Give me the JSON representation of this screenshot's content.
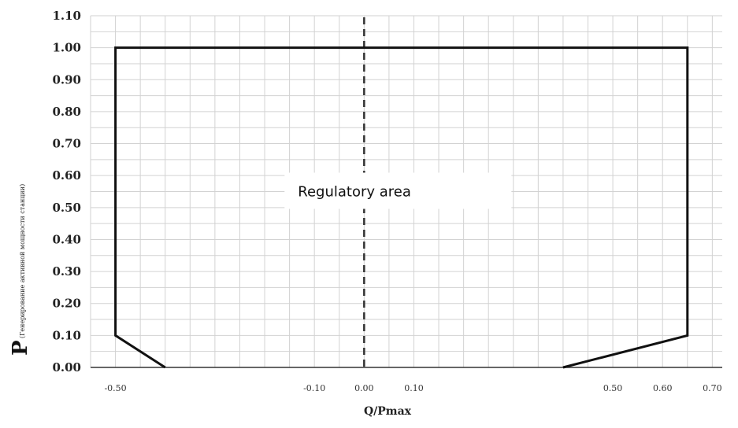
{
  "chart_data": {
    "type": "line",
    "xlabel": "Q/Pmax",
    "ylabel": "P",
    "ylabel_sub": "(Генерирование активной мощности станции)",
    "xlim": [
      -0.55,
      0.72
    ],
    "ylim": [
      0,
      1.1
    ],
    "y_ticks": [
      "0.00",
      "0.10",
      "0.20",
      "0.30",
      "0.40",
      "0.50",
      "0.60",
      "0.70",
      "0.80",
      "0.90",
      "1.00",
      "1.10"
    ],
    "x_ticks": [
      {
        "value": -0.5,
        "label": "-0.50"
      },
      {
        "value": -0.1,
        "label": "-0.10"
      },
      {
        "value": 0.0,
        "label": "0.00"
      },
      {
        "value": 0.1,
        "label": "0.10"
      },
      {
        "value": 0.5,
        "label": "0.50"
      },
      {
        "value": 0.6,
        "label": "0.60"
      },
      {
        "value": 0.7,
        "label": "0.70"
      }
    ],
    "grid": true,
    "series": [
      {
        "x": [
          -0.4,
          -0.5,
          -0.5,
          0.65,
          0.65,
          0.4
        ],
        "y": [
          0.0,
          0.1,
          1.0,
          1.0,
          0.1,
          0.0
        ]
      }
    ],
    "reference_line": {
      "x": 0.0,
      "style": "dashed"
    },
    "annotations": [
      {
        "text": "Regulatory area",
        "x": -0.16,
        "y": 0.55
      }
    ]
  }
}
